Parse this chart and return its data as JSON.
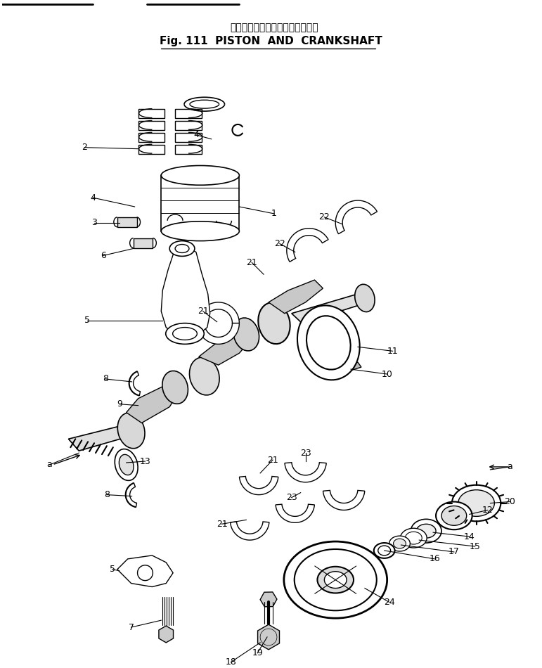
{
  "title_jp": "ピストンおよびクランクシャフト",
  "title_en": "Fig. 111  PISTON  AND  CRANKSHAFT",
  "bg_color": "#ffffff",
  "line_color": "#000000",
  "figsize": [
    7.71,
    9.5
  ],
  "dpi": 100
}
